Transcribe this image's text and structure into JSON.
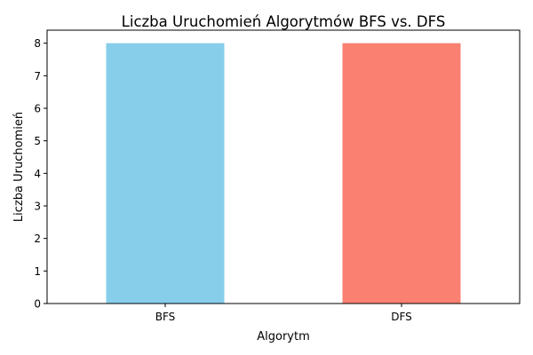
{
  "chart_data": {
    "type": "bar",
    "title": "Liczba Uruchomień Algorytmów BFS vs. DFS",
    "xlabel": "Algorytm",
    "ylabel": "Liczba Uruchomień",
    "categories": [
      "BFS",
      "DFS"
    ],
    "values": [
      8,
      8
    ],
    "bar_colors": [
      "#87CEEB",
      "#FA8072"
    ],
    "ylim": [
      0,
      8.4
    ],
    "yticks": [
      0,
      1,
      2,
      3,
      4,
      5,
      6,
      7,
      8
    ],
    "grid": false,
    "legend": "none"
  }
}
